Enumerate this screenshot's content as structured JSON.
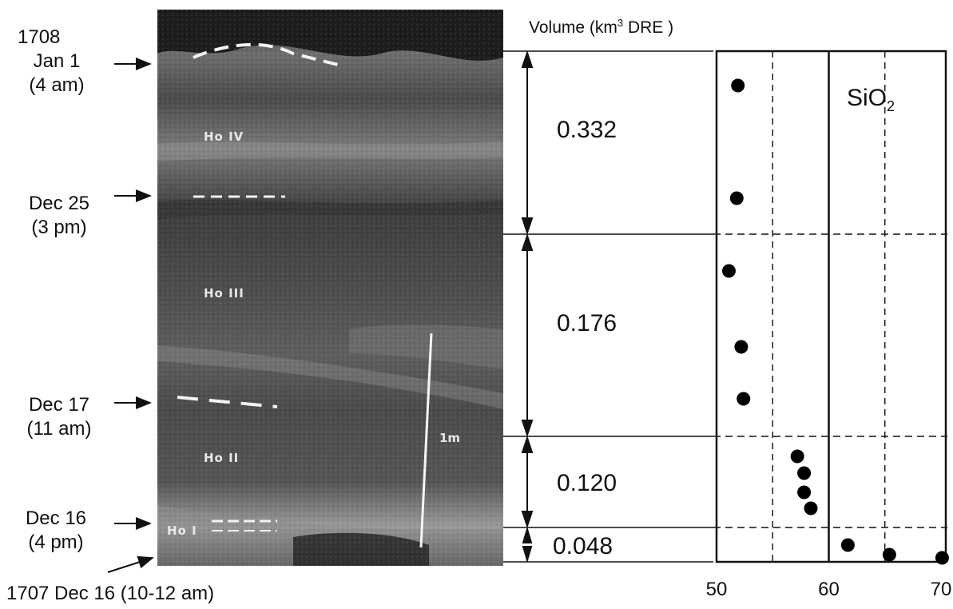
{
  "timeline": {
    "labels": [
      {
        "line1": "1708",
        "line2": "Jan 1",
        "line3": "(4 am)"
      },
      {
        "line1": "Dec 25",
        "line2": "(3 pm)"
      },
      {
        "line1": "Dec 17",
        "line2": "(11 am)"
      },
      {
        "line1": "Dec 16",
        "line2": "(4 pm)"
      },
      {
        "line1": "1707 Dec 16 (10-12 am)"
      }
    ]
  },
  "photo": {
    "units": [
      "Ho IV",
      "Ho III",
      "Ho II",
      "Ho I"
    ],
    "scale_label": "1m"
  },
  "volume": {
    "title_pre": "Volume (km",
    "title_sup": "3",
    "title_post": " DRE )",
    "values": [
      "0.332",
      "0.176",
      "0.120",
      "0.048"
    ]
  },
  "chart_data": {
    "type": "scatter",
    "series_label_main": "SiO",
    "series_label_sub": "2",
    "x_ticks": [
      "50",
      "60",
      "70"
    ],
    "xlim": [
      49.5,
      70.5
    ],
    "points": [
      {
        "x": 51.9,
        "layer": "Ho IV"
      },
      {
        "x": 51.8,
        "layer": "Ho IV"
      },
      {
        "x": 51.1,
        "layer": "Ho III"
      },
      {
        "x": 52.2,
        "layer": "Ho III"
      },
      {
        "x": 52.4,
        "layer": "Ho III"
      },
      {
        "x": 57.2,
        "layer": "Ho II"
      },
      {
        "x": 57.8,
        "layer": "Ho II"
      },
      {
        "x": 57.8,
        "layer": "Ho II"
      },
      {
        "x": 58.4,
        "layer": "Ho II"
      },
      {
        "x": 61.7,
        "layer": "Ho I"
      },
      {
        "x": 65.4,
        "layer": "Ho I"
      },
      {
        "x": 70.1,
        "layer": "Ho I"
      }
    ]
  },
  "colors": {
    "ink": "#111111",
    "marker": "#000000",
    "photo_dark": "#2f2f2f",
    "photo_mid": "#5a5a5a",
    "photo_light": "#8a8a8a"
  }
}
